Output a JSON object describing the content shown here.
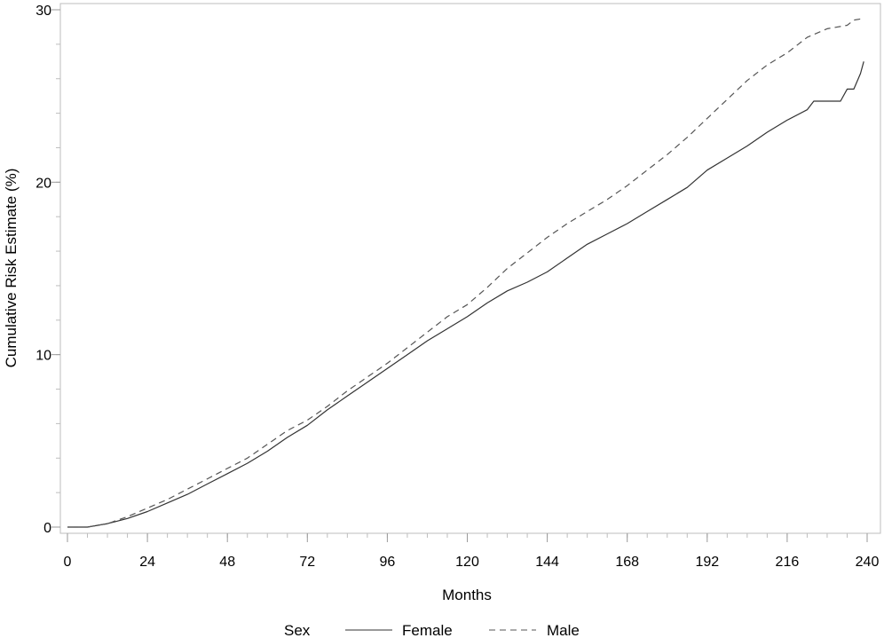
{
  "chart_data": {
    "type": "line",
    "title": "",
    "xlabel": "Months",
    "ylabel": "Cumulative Risk Estimate (%)",
    "xlim": [
      0,
      240
    ],
    "ylim": [
      0,
      30
    ],
    "x_ticks": [
      "0",
      "24",
      "48",
      "72",
      "96",
      "120",
      "144",
      "168",
      "192",
      "216",
      "240"
    ],
    "y_ticks": [
      "0",
      "10",
      "20",
      "30"
    ],
    "grid": false,
    "legend": {
      "title": "Sex",
      "placement": "bottom"
    },
    "series": [
      {
        "name": "Female",
        "line_style": "solid",
        "color": "#333333",
        "x": [
          0,
          6,
          12,
          18,
          24,
          30,
          36,
          42,
          48,
          54,
          60,
          66,
          72,
          78,
          84,
          90,
          96,
          102,
          108,
          114,
          120,
          126,
          132,
          138,
          144,
          150,
          156,
          162,
          168,
          174,
          180,
          186,
          192,
          198,
          204,
          210,
          216,
          222,
          224,
          228,
          232,
          234,
          236,
          238,
          239
        ],
        "y": [
          0,
          0,
          0.2,
          0.5,
          0.9,
          1.4,
          1.9,
          2.5,
          3.1,
          3.7,
          4.4,
          5.2,
          5.9,
          6.8,
          7.6,
          8.4,
          9.2,
          10.0,
          10.8,
          11.5,
          12.2,
          13.0,
          13.7,
          14.2,
          14.8,
          15.6,
          16.4,
          17.0,
          17.6,
          18.3,
          19.0,
          19.7,
          20.7,
          21.4,
          22.1,
          22.9,
          23.6,
          24.2,
          24.7,
          24.7,
          24.7,
          25.4,
          25.4,
          26.3,
          27.0
        ]
      },
      {
        "name": "Male",
        "line_style": "dashed",
        "color": "#555555",
        "x": [
          0,
          6,
          12,
          18,
          24,
          30,
          36,
          42,
          48,
          54,
          60,
          66,
          72,
          78,
          84,
          90,
          96,
          102,
          108,
          114,
          120,
          126,
          132,
          138,
          144,
          150,
          156,
          162,
          168,
          174,
          180,
          186,
          192,
          198,
          204,
          210,
          216,
          222,
          228,
          234,
          236,
          239
        ],
        "y": [
          0,
          0,
          0.2,
          0.6,
          1.1,
          1.6,
          2.2,
          2.8,
          3.4,
          4.0,
          4.8,
          5.6,
          6.2,
          7.0,
          7.9,
          8.7,
          9.5,
          10.4,
          11.3,
          12.2,
          12.9,
          13.9,
          15.0,
          15.9,
          16.8,
          17.6,
          18.3,
          19.0,
          19.8,
          20.7,
          21.6,
          22.6,
          23.7,
          24.8,
          25.9,
          26.8,
          27.5,
          28.4,
          28.9,
          29.1,
          29.4,
          29.5
        ]
      }
    ]
  }
}
